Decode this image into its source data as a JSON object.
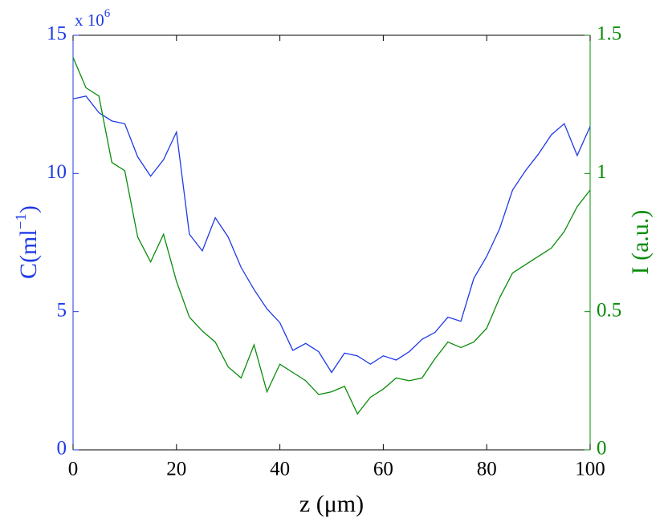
{
  "chart_data": {
    "type": "line",
    "xlabel": "z (μm)",
    "ylabel": {
      "base": "C(ml",
      "exponent": "−1",
      "close": ")"
    },
    "y2label": "I (a.u.)",
    "y_multiplier": {
      "base": "x 10",
      "exponent": "6"
    },
    "x": [
      0,
      2.5,
      5,
      7.5,
      10,
      12.5,
      15,
      17.5,
      20,
      22.5,
      25,
      27.5,
      30,
      32.5,
      35,
      37.5,
      40,
      42.5,
      45,
      47.5,
      50,
      52.5,
      55,
      57.5,
      60,
      62.5,
      65,
      67.5,
      70,
      72.5,
      75,
      77.5,
      80,
      82.5,
      85,
      87.5,
      90,
      92.5,
      95,
      97.5,
      100
    ],
    "series": [
      {
        "color": "#1f3ae6",
        "axis": "y",
        "values": [
          12.7,
          12.8,
          12.2,
          11.9,
          11.8,
          10.6,
          9.9,
          10.5,
          11.5,
          7.8,
          7.2,
          8.4,
          7.7,
          6.6,
          5.8,
          5.1,
          4.6,
          3.6,
          3.85,
          3.55,
          2.8,
          3.5,
          3.4,
          3.1,
          3.4,
          3.25,
          3.55,
          4.0,
          4.25,
          4.8,
          4.65,
          6.2,
          7.0,
          8.0,
          9.4,
          10.1,
          10.7,
          11.4,
          11.8,
          10.65,
          11.7
        ]
      },
      {
        "color": "#0a8c0a",
        "axis": "y2",
        "values": [
          1.42,
          1.31,
          1.28,
          1.04,
          1.01,
          0.77,
          0.68,
          0.78,
          0.61,
          0.48,
          0.43,
          0.39,
          0.3,
          0.26,
          0.38,
          0.21,
          0.31,
          0.28,
          0.25,
          0.2,
          0.21,
          0.23,
          0.13,
          0.19,
          0.22,
          0.26,
          0.25,
          0.26,
          0.33,
          0.39,
          0.37,
          0.39,
          0.44,
          0.55,
          0.64,
          0.67,
          0.7,
          0.73,
          0.79,
          0.88,
          0.94
        ]
      }
    ],
    "xlim": [
      0,
      100
    ],
    "xticks": [
      0,
      20,
      40,
      60,
      80,
      100
    ],
    "ylim": [
      0,
      15
    ],
    "yticks": [
      0,
      5,
      10,
      15
    ],
    "y2lim": [
      0,
      1.5
    ],
    "y2ticks": [
      0,
      0.5,
      1,
      1.5
    ]
  }
}
